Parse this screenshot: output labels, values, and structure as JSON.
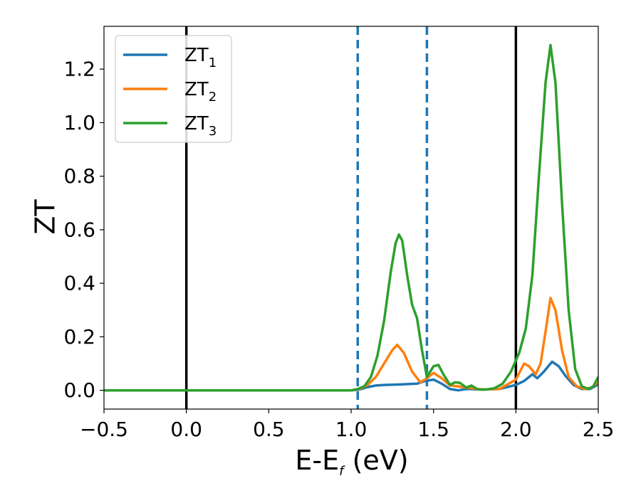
{
  "chart_data": {
    "type": "line",
    "xlabel": {
      "main": "E-E",
      "sub": "f",
      "unit": " (eV)"
    },
    "ylabel": "ZT",
    "xlim": [
      -0.5,
      2.5
    ],
    "ylim": [
      -0.07,
      1.36
    ],
    "xticks": [
      -0.5,
      0.0,
      0.5,
      1.0,
      1.5,
      2.0,
      2.5
    ],
    "xtick_labels": [
      "−0.5",
      "0.0",
      "0.5",
      "1.0",
      "1.5",
      "2.0",
      "2.5"
    ],
    "yticks": [
      0.0,
      0.2,
      0.4,
      0.6,
      0.8,
      1.0,
      1.2
    ],
    "ytick_labels": [
      "0.0",
      "0.2",
      "0.4",
      "0.6",
      "0.8",
      "1.0",
      "1.2"
    ],
    "grid": false,
    "legend_position": "top-left",
    "reference_lines": [
      {
        "x": 0.0,
        "style": "solid",
        "color": "#000000"
      },
      {
        "x": 2.0,
        "style": "solid",
        "color": "#000000"
      },
      {
        "x": 1.04,
        "style": "dashed",
        "color": "#1f77b4"
      },
      {
        "x": 1.46,
        "style": "dashed",
        "color": "#1f77b4"
      }
    ],
    "series": [
      {
        "name": "ZT",
        "sub": "1",
        "color": "#1f77b4",
        "points": [
          [
            -0.5,
            0
          ],
          [
            1.0,
            0
          ],
          [
            1.05,
            0.003
          ],
          [
            1.1,
            0.012
          ],
          [
            1.15,
            0.018
          ],
          [
            1.2,
            0.02
          ],
          [
            1.3,
            0.022
          ],
          [
            1.4,
            0.025
          ],
          [
            1.45,
            0.035
          ],
          [
            1.5,
            0.04
          ],
          [
            1.55,
            0.025
          ],
          [
            1.6,
            0.005
          ],
          [
            1.65,
            0.0
          ],
          [
            1.7,
            0.005
          ],
          [
            1.8,
            0.003
          ],
          [
            1.9,
            0.005
          ],
          [
            2.0,
            0.02
          ],
          [
            2.05,
            0.035
          ],
          [
            2.1,
            0.06
          ],
          [
            2.13,
            0.045
          ],
          [
            2.17,
            0.07
          ],
          [
            2.22,
            0.107
          ],
          [
            2.26,
            0.09
          ],
          [
            2.3,
            0.055
          ],
          [
            2.35,
            0.02
          ],
          [
            2.4,
            0.005
          ],
          [
            2.45,
            0.005
          ],
          [
            2.5,
            0.022
          ]
        ]
      },
      {
        "name": "ZT",
        "sub": "2",
        "color": "#ff7f0e",
        "points": [
          [
            -0.5,
            0
          ],
          [
            1.0,
            0
          ],
          [
            1.05,
            0.005
          ],
          [
            1.1,
            0.02
          ],
          [
            1.15,
            0.05
          ],
          [
            1.2,
            0.1
          ],
          [
            1.25,
            0.15
          ],
          [
            1.28,
            0.17
          ],
          [
            1.32,
            0.14
          ],
          [
            1.37,
            0.07
          ],
          [
            1.42,
            0.03
          ],
          [
            1.46,
            0.045
          ],
          [
            1.5,
            0.065
          ],
          [
            1.55,
            0.045
          ],
          [
            1.6,
            0.018
          ],
          [
            1.65,
            0.015
          ],
          [
            1.7,
            0.01
          ],
          [
            1.8,
            0.003
          ],
          [
            1.9,
            0.005
          ],
          [
            2.0,
            0.04
          ],
          [
            2.05,
            0.1
          ],
          [
            2.08,
            0.09
          ],
          [
            2.12,
            0.06
          ],
          [
            2.15,
            0.1
          ],
          [
            2.18,
            0.22
          ],
          [
            2.21,
            0.345
          ],
          [
            2.24,
            0.3
          ],
          [
            2.28,
            0.15
          ],
          [
            2.32,
            0.05
          ],
          [
            2.37,
            0.015
          ],
          [
            2.42,
            0.005
          ],
          [
            2.46,
            0.01
          ],
          [
            2.5,
            0.032
          ]
        ]
      },
      {
        "name": "ZT",
        "sub": "3",
        "color": "#2ca02c",
        "points": [
          [
            -0.5,
            0
          ],
          [
            1.0,
            0
          ],
          [
            1.04,
            0.005
          ],
          [
            1.08,
            0.015
          ],
          [
            1.12,
            0.05
          ],
          [
            1.16,
            0.13
          ],
          [
            1.2,
            0.26
          ],
          [
            1.24,
            0.44
          ],
          [
            1.27,
            0.55
          ],
          [
            1.29,
            0.582
          ],
          [
            1.31,
            0.56
          ],
          [
            1.34,
            0.43
          ],
          [
            1.37,
            0.32
          ],
          [
            1.4,
            0.27
          ],
          [
            1.43,
            0.15
          ],
          [
            1.46,
            0.05
          ],
          [
            1.5,
            0.09
          ],
          [
            1.53,
            0.095
          ],
          [
            1.56,
            0.06
          ],
          [
            1.6,
            0.02
          ],
          [
            1.63,
            0.03
          ],
          [
            1.66,
            0.028
          ],
          [
            1.7,
            0.01
          ],
          [
            1.73,
            0.018
          ],
          [
            1.77,
            0.003
          ],
          [
            1.82,
            0.003
          ],
          [
            1.87,
            0.008
          ],
          [
            1.92,
            0.025
          ],
          [
            1.97,
            0.07
          ],
          [
            2.02,
            0.14
          ],
          [
            2.06,
            0.23
          ],
          [
            2.1,
            0.43
          ],
          [
            2.14,
            0.8
          ],
          [
            2.18,
            1.15
          ],
          [
            2.21,
            1.29
          ],
          [
            2.24,
            1.15
          ],
          [
            2.28,
            0.7
          ],
          [
            2.32,
            0.3
          ],
          [
            2.36,
            0.08
          ],
          [
            2.4,
            0.015
          ],
          [
            2.44,
            0.005
          ],
          [
            2.47,
            0.015
          ],
          [
            2.5,
            0.05
          ]
        ]
      }
    ]
  }
}
